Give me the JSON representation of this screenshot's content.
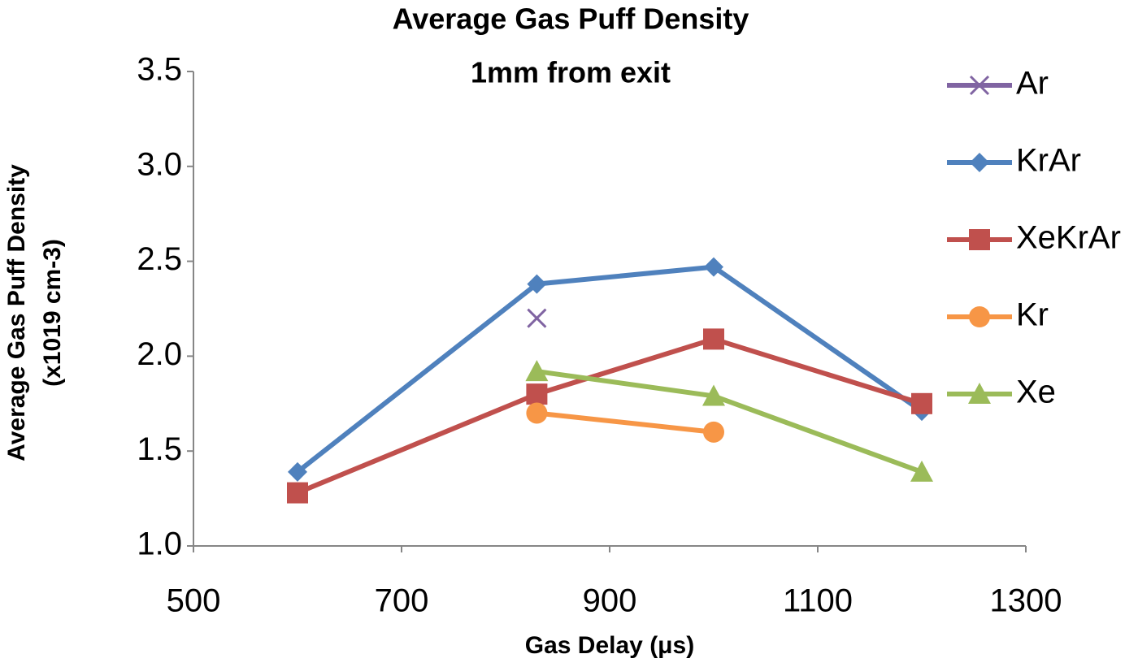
{
  "chart_data": {
    "type": "line",
    "title": "Average Gas Puff Density",
    "subtitle": "1mm from exit",
    "xlabel": "Gas Delay (μs)",
    "ylabel": [
      "Average Gas Puff Density",
      "(x1019 cm-3)"
    ],
    "xlim": [
      500,
      1300
    ],
    "xticks": [
      500,
      700,
      900,
      1100,
      1300
    ],
    "ylim": [
      1.0,
      3.5
    ],
    "yticks": [
      {
        "value": 1.0,
        "label": "1.0"
      },
      1.5,
      {
        "value": 2.0,
        "label": "2.0"
      },
      2.5,
      {
        "value": 3.0,
        "label": "3.0"
      },
      3.5
    ],
    "grid": false,
    "legend": "right",
    "series": [
      {
        "name": "Ar",
        "color": "#8064a2",
        "marker": "cross",
        "x": [
          830
        ],
        "values": [
          2.2
        ]
      },
      {
        "name": "KrAr",
        "color": "#4f81bd",
        "marker": "diamond",
        "x": [
          600,
          830,
          1000,
          1200
        ],
        "values": [
          1.39,
          2.38,
          2.47,
          1.71
        ]
      },
      {
        "name": "XeKrAr",
        "color": "#c0504d",
        "marker": "square",
        "x": [
          600,
          830,
          1000,
          1200
        ],
        "values": [
          1.28,
          1.8,
          2.09,
          1.75
        ]
      },
      {
        "name": "Kr",
        "color": "#f79646",
        "marker": "circle",
        "x": [
          830,
          1000
        ],
        "values": [
          1.7,
          1.6
        ]
      },
      {
        "name": "Xe",
        "color": "#9bbb59",
        "marker": "triangle",
        "x": [
          830,
          1000,
          1200
        ],
        "values": [
          1.92,
          1.79,
          1.39
        ]
      }
    ]
  }
}
